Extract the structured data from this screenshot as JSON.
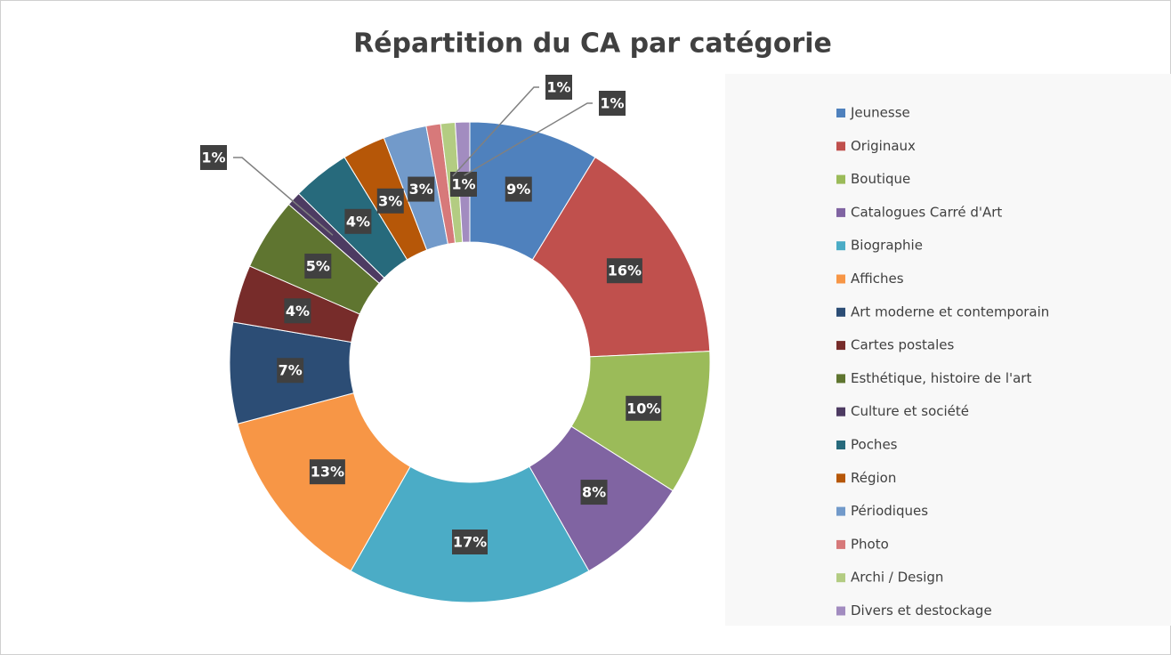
{
  "chart_data": {
    "type": "donut",
    "title": "Répartition du CA par catégorie",
    "categories": [
      "Jeunesse",
      "Originaux",
      "Boutique",
      "Catalogues Carré d'Art",
      "Biographie",
      "Affiches",
      "Art moderne et contemporain",
      "Cartes postales",
      "Esthétique, histoire de l'art",
      "Culture et société",
      "Poches",
      "Région",
      "Périodiques",
      "Photo",
      "Archi / Design",
      "Divers et destockage"
    ],
    "values": [
      9,
      16,
      10,
      8,
      17,
      13,
      7,
      4,
      5,
      1,
      4,
      3,
      3,
      1,
      1,
      1
    ],
    "value_labels": [
      "9%",
      "16%",
      "10%",
      "8%",
      "17%",
      "13%",
      "7%",
      "4%",
      "5%",
      "1%",
      "4%",
      "3%",
      "3%",
      "1%",
      "1%",
      "1%"
    ],
    "colors": [
      "#4f81bd",
      "#c0504d",
      "#9bbb59",
      "#8064a2",
      "#4bacc6",
      "#f79646",
      "#2c4d75",
      "#772c2a",
      "#5f7530",
      "#4d3b62",
      "#276a7c",
      "#b65708",
      "#729aca",
      "#d7797a",
      "#b3cc82",
      "#a28cc0"
    ],
    "legend": "right"
  }
}
